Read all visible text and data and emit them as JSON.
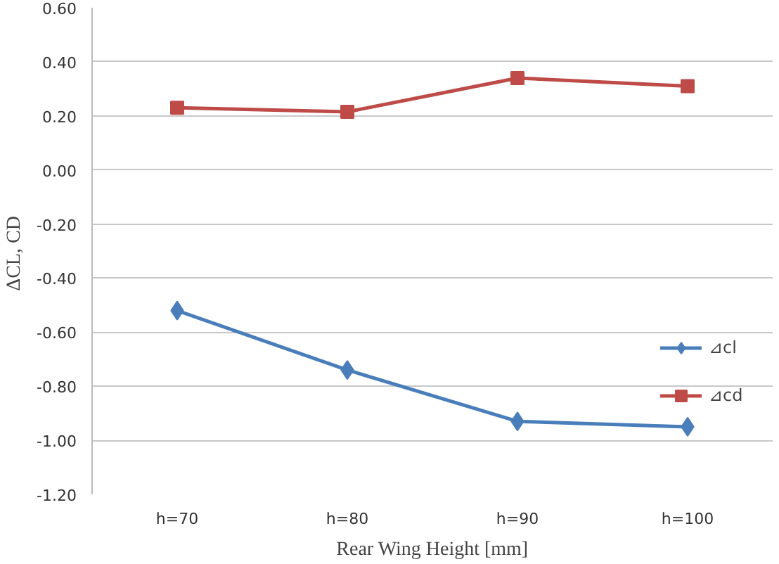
{
  "chart_data": {
    "type": "line",
    "xlabel": "Rear Wing Height [mm]",
    "ylabel": "ΔCL,  CD",
    "categories": [
      "h=70",
      "h=80",
      "h=90",
      "h=100"
    ],
    "series": [
      {
        "name": "⊿cl",
        "color": "#4a7ebb",
        "marker": "diamond",
        "values": [
          -0.52,
          -0.74,
          -0.93,
          -0.95
        ]
      },
      {
        "name": "⊿cd",
        "color": "#be4b48",
        "marker": "square",
        "values": [
          0.23,
          0.215,
          0.34,
          0.31
        ]
      }
    ],
    "ylim": [
      -1.2,
      0.6
    ],
    "yticks": [
      {
        "value": -1.2,
        "label": "-1.20"
      },
      {
        "value": -1.0,
        "label": "-1.00"
      },
      {
        "value": -0.8,
        "label": "-0.80"
      },
      {
        "value": -0.6,
        "label": "-0.60"
      },
      {
        "value": -0.4,
        "label": "-0.40"
      },
      {
        "value": -0.2,
        "label": "-0.20"
      },
      {
        "value": 0.0,
        "label": "0.00"
      },
      {
        "value": 0.2,
        "label": "0.20"
      },
      {
        "value": 0.4,
        "label": "0.40"
      },
      {
        "value": 0.6,
        "label": "0.60"
      }
    ],
    "grid": "y",
    "legend": "right",
    "line_style": "solid"
  }
}
